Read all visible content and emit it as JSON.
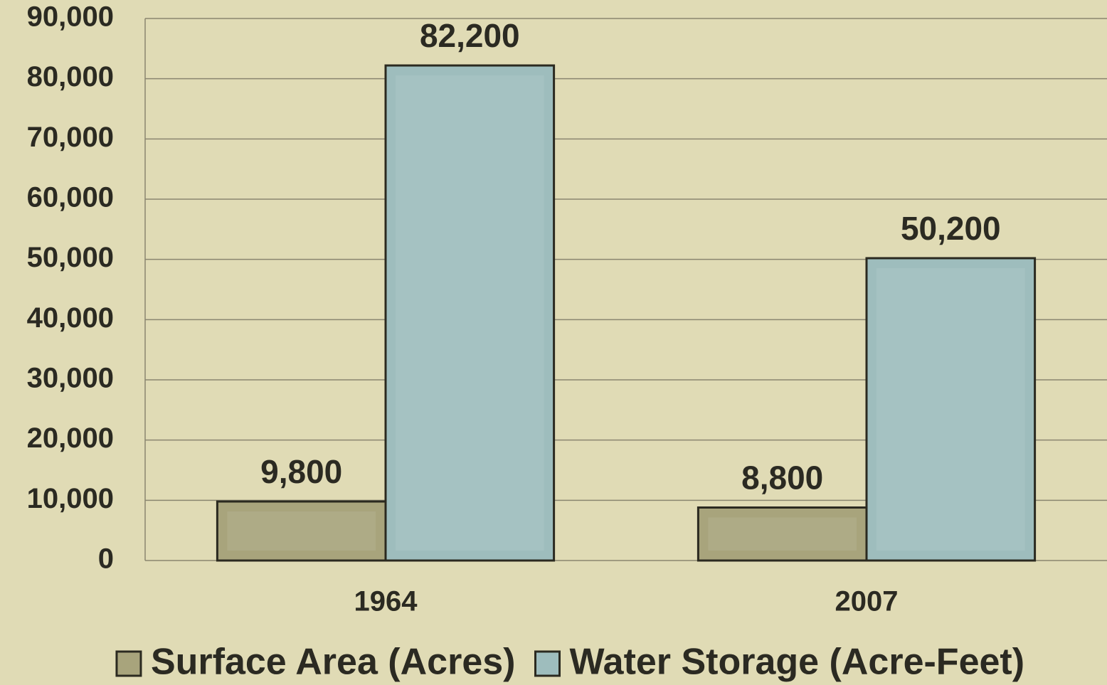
{
  "chart_data": {
    "type": "bar",
    "categories": [
      "1964",
      "2007"
    ],
    "series": [
      {
        "name": "Surface Area (Acres)",
        "color": "#a8a47c",
        "values": [
          9800,
          8800
        ],
        "value_labels": [
          "9,800",
          "8,800"
        ]
      },
      {
        "name": "Water Storage (Acre-Feet)",
        "color": "#9ebdbd",
        "values": [
          82200,
          50200
        ],
        "value_labels": [
          "82,200",
          "50,200"
        ]
      }
    ],
    "ylim": [
      0,
      90000
    ],
    "yticks": [
      0,
      {
        "value": 10000,
        "label": "10,000"
      },
      {
        "value": 20000,
        "label": "20,000"
      },
      {
        "value": 30000,
        "label": "30,000"
      },
      {
        "value": 40000,
        "label": "40,000"
      },
      {
        "value": 50000,
        "label": "50,000"
      },
      {
        "value": 60000,
        "label": "60,000"
      },
      {
        "value": 70000,
        "label": "70,000"
      },
      {
        "value": 80000,
        "label": "80,000"
      },
      {
        "value": 90000,
        "label": "90,000"
      }
    ],
    "grid": true,
    "legend": "bottom"
  }
}
